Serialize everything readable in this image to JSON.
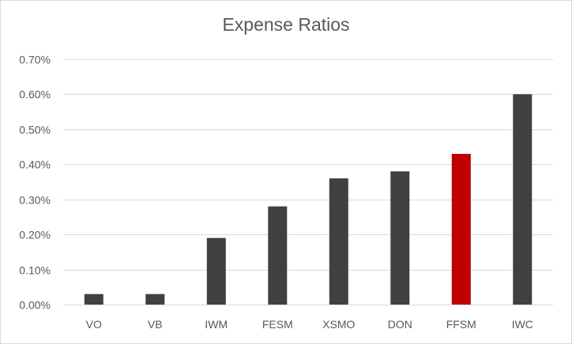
{
  "chart_data": {
    "type": "bar",
    "title": "Expense Ratios",
    "xlabel": "",
    "ylabel": "",
    "categories": [
      "VO",
      "VB",
      "IWM",
      "FESM",
      "XSMO",
      "DON",
      "FFSM",
      "IWC"
    ],
    "values": [
      0.03,
      0.03,
      0.19,
      0.28,
      0.36,
      0.38,
      0.43,
      0.6
    ],
    "value_unit": "%",
    "ylim": [
      0,
      0.7
    ],
    "yticks": [
      0.0,
      0.1,
      0.2,
      0.3,
      0.4,
      0.5,
      0.6,
      0.7
    ],
    "ytick_labels": [
      "0.00%",
      "0.10%",
      "0.20%",
      "0.30%",
      "0.40%",
      "0.50%",
      "0.60%",
      "0.70%"
    ],
    "grid": true,
    "legend": "none",
    "colors": {
      "bar": "#404040",
      "highlight": "#c00000",
      "grid": "#d9d9d9",
      "text": "#595959"
    },
    "highlight_category": "FFSM"
  }
}
